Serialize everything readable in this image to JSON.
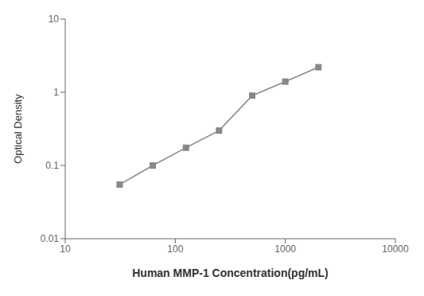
{
  "chart_data": {
    "type": "line",
    "x": [
      31.25,
      62.5,
      125,
      250,
      500,
      1000,
      2000
    ],
    "values": [
      0.055,
      0.1,
      0.175,
      0.3,
      0.9,
      1.4,
      2.2
    ],
    "xlabel": "Human MMP-1 Concentration(pg/mL)",
    "ylabel": "Optical Density",
    "xlim": [
      10,
      10000
    ],
    "ylim": [
      0.01,
      10
    ],
    "xticks": [
      10,
      100,
      1000,
      10000
    ],
    "yticks": [
      0.01,
      0.1,
      1,
      10
    ],
    "log": true,
    "color": "#888888",
    "marker": "square",
    "line_style": "solid"
  }
}
